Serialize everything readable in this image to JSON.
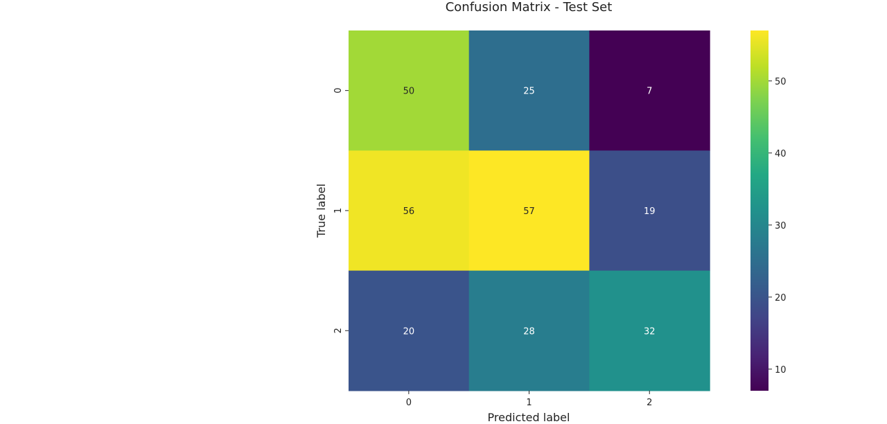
{
  "chart_data": {
    "type": "heatmap",
    "title": "Confusion Matrix - Test Set",
    "xlabel": "Predicted label",
    "ylabel": "True label",
    "x_categories": [
      "0",
      "1",
      "2"
    ],
    "y_categories": [
      "0",
      "1",
      "2"
    ],
    "values": [
      [
        50,
        25,
        7
      ],
      [
        56,
        57,
        19
      ],
      [
        20,
        28,
        32
      ]
    ],
    "colormap": "viridis",
    "vmin": 7,
    "vmax": 57,
    "colorbar_ticks": [
      10,
      20,
      30,
      40,
      50
    ],
    "annotation_colors": {
      "dark_text": "#262626",
      "light_text": "#ffffff"
    }
  }
}
